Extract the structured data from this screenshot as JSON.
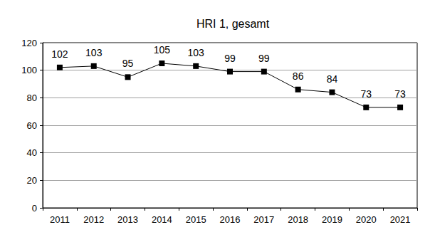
{
  "chart_data": {
    "type": "line",
    "title": "HRI 1, gesamt",
    "categories": [
      "2011",
      "2012",
      "2013",
      "2014",
      "2015",
      "2016",
      "2017",
      "2018",
      "2019",
      "2020",
      "2021"
    ],
    "values": [
      102,
      103,
      95,
      105,
      103,
      99,
      99,
      86,
      84,
      73,
      73
    ],
    "color": "#000000",
    "marker": "square",
    "ylim": [
      0,
      120
    ],
    "yticks": [
      0,
      20,
      40,
      60,
      80,
      100,
      120
    ],
    "grid": true,
    "data_labels": true
  }
}
